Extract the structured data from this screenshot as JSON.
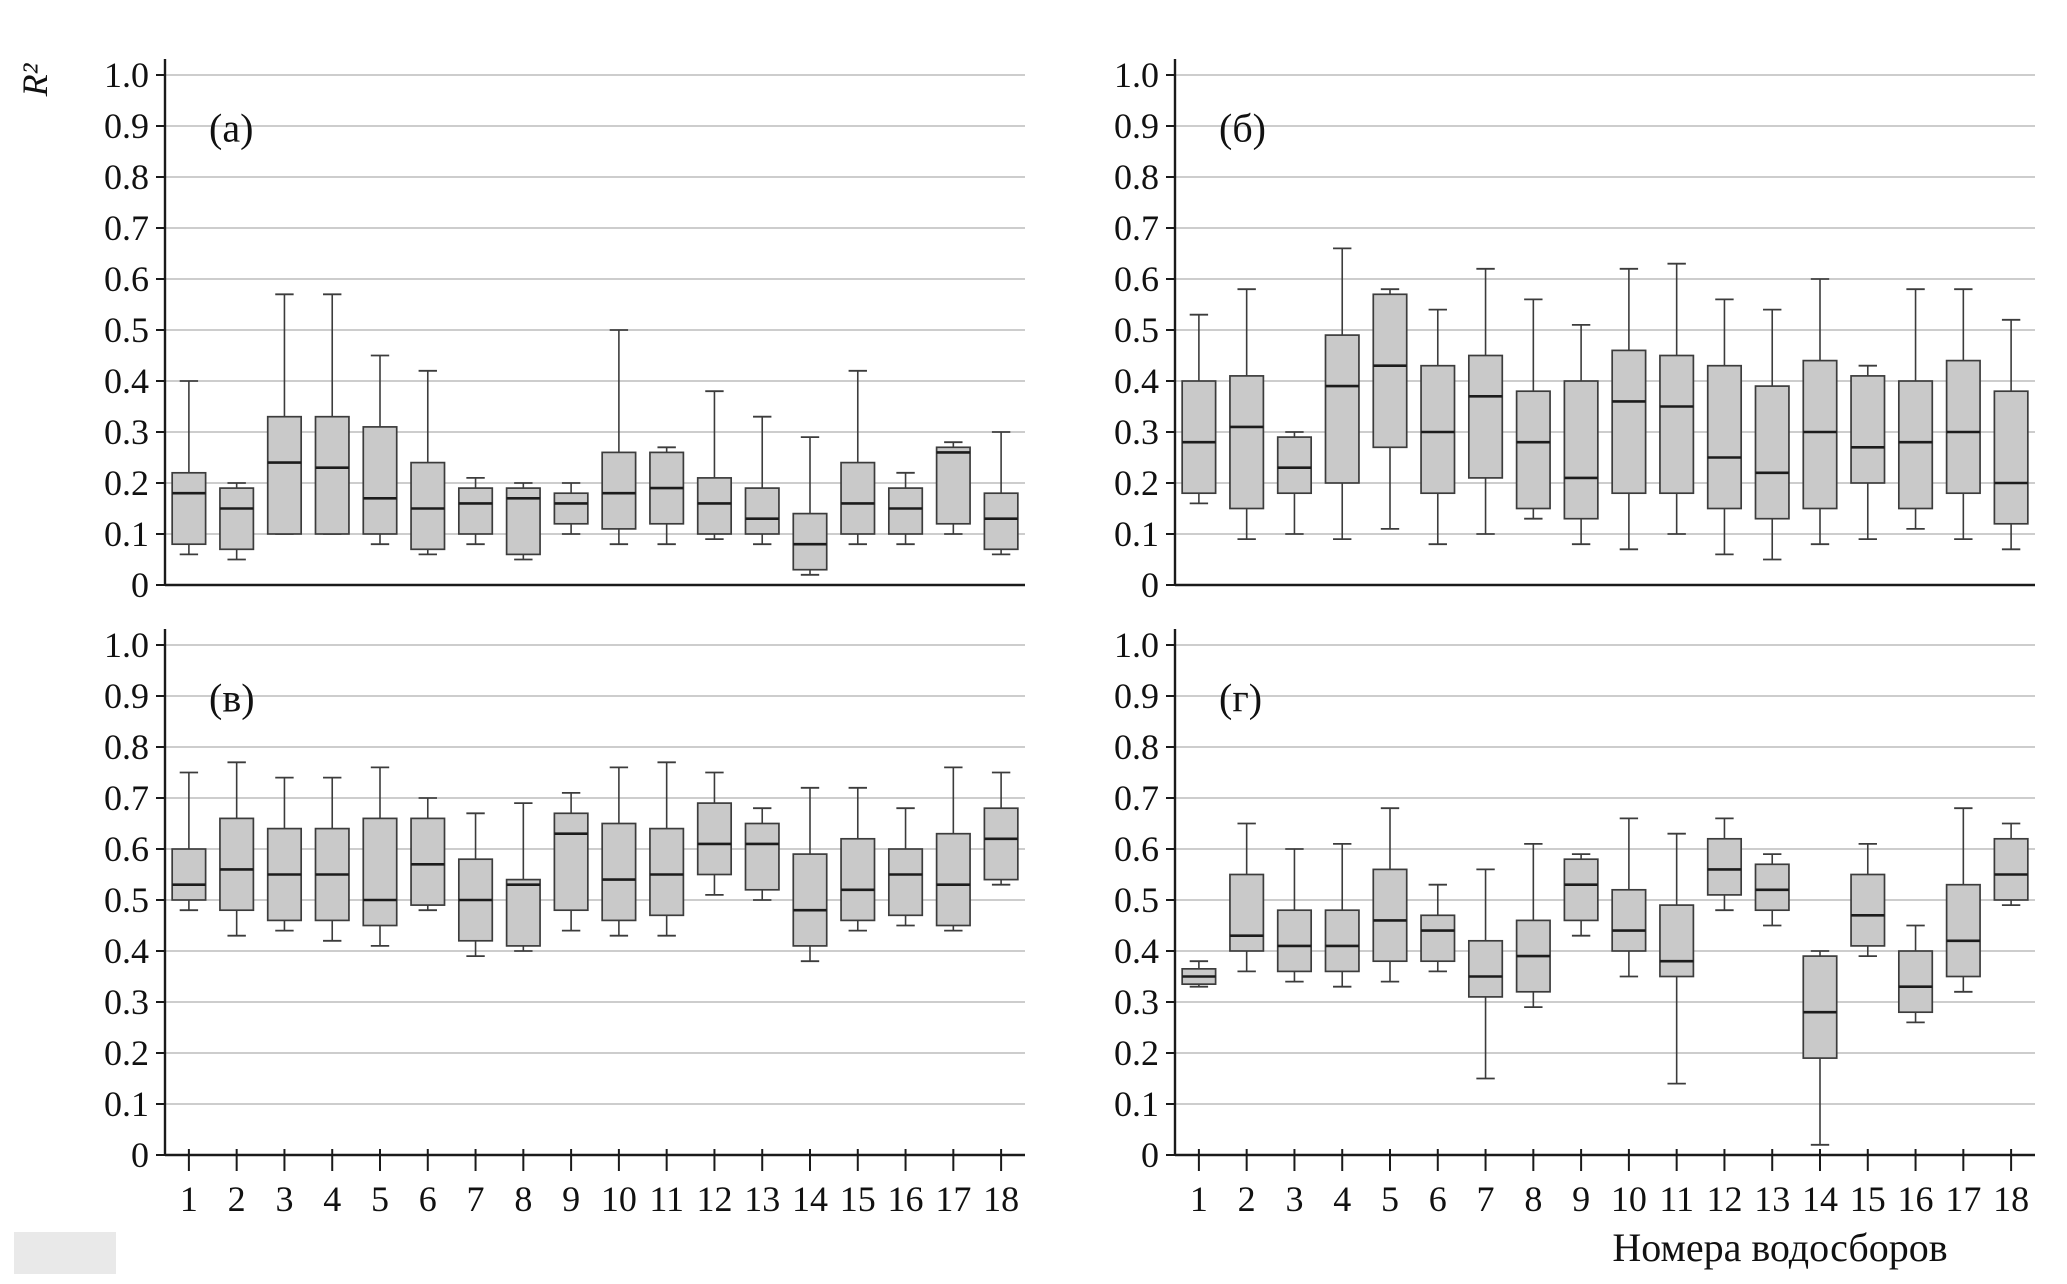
{
  "labels": {
    "y_axis_title": "R²",
    "x_axis_title": "Номера водосборов"
  },
  "style": {
    "box_fill": "#c9c9c9",
    "box_stroke": "#3c3c3c",
    "median_color": "#1c1c1c",
    "grid_color": "#9b9b9b",
    "axis_color": "#1a1a1a"
  },
  "chart_data": [
    {
      "type": "boxplot",
      "label": "(а)",
      "ylim": [
        0,
        1
      ],
      "grid": true,
      "show_x_tick_labels": false,
      "ytick_values": [
        0,
        0.1,
        0.2,
        0.3,
        0.4,
        0.5,
        0.6,
        0.7,
        0.8,
        0.9,
        1.0
      ],
      "ytick_labels": [
        "0",
        "0.1",
        "0.2",
        "0.3",
        "0.4",
        "0.5",
        "0.6",
        "0.7",
        "0.8",
        "0.9",
        "1.0"
      ],
      "categories": [
        "1",
        "2",
        "3",
        "4",
        "5",
        "6",
        "7",
        "8",
        "9",
        "10",
        "11",
        "12",
        "13",
        "14",
        "15",
        "16",
        "17",
        "18"
      ],
      "box_keys": [
        "whisker_low",
        "q1",
        "median",
        "q3",
        "whisker_high"
      ],
      "boxes": [
        [
          0.06,
          0.08,
          0.18,
          0.22,
          0.4
        ],
        [
          0.05,
          0.07,
          0.15,
          0.19,
          0.2
        ],
        [
          0.1,
          0.1,
          0.24,
          0.33,
          0.57
        ],
        [
          0.1,
          0.1,
          0.23,
          0.33,
          0.57
        ],
        [
          0.08,
          0.1,
          0.17,
          0.31,
          0.45
        ],
        [
          0.06,
          0.07,
          0.15,
          0.24,
          0.42
        ],
        [
          0.08,
          0.1,
          0.16,
          0.19,
          0.21
        ],
        [
          0.05,
          0.06,
          0.17,
          0.19,
          0.2
        ],
        [
          0.1,
          0.12,
          0.16,
          0.18,
          0.2
        ],
        [
          0.08,
          0.11,
          0.18,
          0.26,
          0.5
        ],
        [
          0.08,
          0.12,
          0.19,
          0.26,
          0.27
        ],
        [
          0.09,
          0.1,
          0.16,
          0.21,
          0.38
        ],
        [
          0.08,
          0.1,
          0.13,
          0.19,
          0.33
        ],
        [
          0.02,
          0.03,
          0.08,
          0.14,
          0.29
        ],
        [
          0.08,
          0.1,
          0.16,
          0.24,
          0.42
        ],
        [
          0.08,
          0.1,
          0.15,
          0.19,
          0.22
        ],
        [
          0.1,
          0.12,
          0.26,
          0.27,
          0.28
        ],
        [
          0.06,
          0.07,
          0.13,
          0.18,
          0.3
        ]
      ]
    },
    {
      "type": "boxplot",
      "label": "(б)",
      "ylim": [
        0,
        1
      ],
      "grid": true,
      "show_x_tick_labels": false,
      "ytick_values": [
        0,
        0.1,
        0.2,
        0.3,
        0.4,
        0.5,
        0.6,
        0.7,
        0.8,
        0.9,
        1.0
      ],
      "ytick_labels": [
        "0",
        "0.1",
        "0.2",
        "0.3",
        "0.4",
        "0.5",
        "0.6",
        "0.7",
        "0.8",
        "0.9",
        "1.0"
      ],
      "categories": [
        "1",
        "2",
        "3",
        "4",
        "5",
        "6",
        "7",
        "8",
        "9",
        "10",
        "11",
        "12",
        "13",
        "14",
        "15",
        "16",
        "17",
        "18"
      ],
      "box_keys": [
        "whisker_low",
        "q1",
        "median",
        "q3",
        "whisker_high"
      ],
      "boxes": [
        [
          0.16,
          0.18,
          0.28,
          0.4,
          0.53
        ],
        [
          0.09,
          0.15,
          0.31,
          0.41,
          0.58
        ],
        [
          0.1,
          0.18,
          0.23,
          0.29,
          0.3
        ],
        [
          0.09,
          0.2,
          0.39,
          0.49,
          0.66
        ],
        [
          0.11,
          0.27,
          0.43,
          0.57,
          0.58
        ],
        [
          0.08,
          0.18,
          0.3,
          0.43,
          0.54
        ],
        [
          0.1,
          0.21,
          0.37,
          0.45,
          0.62
        ],
        [
          0.13,
          0.15,
          0.28,
          0.38,
          0.56
        ],
        [
          0.08,
          0.13,
          0.21,
          0.4,
          0.51
        ],
        [
          0.07,
          0.18,
          0.36,
          0.46,
          0.62
        ],
        [
          0.1,
          0.18,
          0.35,
          0.45,
          0.63
        ],
        [
          0.06,
          0.15,
          0.25,
          0.43,
          0.56
        ],
        [
          0.05,
          0.13,
          0.22,
          0.39,
          0.54
        ],
        [
          0.08,
          0.15,
          0.3,
          0.44,
          0.6
        ],
        [
          0.09,
          0.2,
          0.27,
          0.41,
          0.43
        ],
        [
          0.11,
          0.15,
          0.28,
          0.4,
          0.58
        ],
        [
          0.09,
          0.18,
          0.3,
          0.44,
          0.58
        ],
        [
          0.07,
          0.12,
          0.2,
          0.38,
          0.52
        ]
      ]
    },
    {
      "type": "boxplot",
      "label": "(в)",
      "ylim": [
        0,
        1
      ],
      "grid": true,
      "show_x_tick_labels": true,
      "ytick_values": [
        0,
        0.1,
        0.2,
        0.3,
        0.4,
        0.5,
        0.6,
        0.7,
        0.8,
        0.9,
        1.0
      ],
      "ytick_labels": [
        "0",
        "0.1",
        "0.2",
        "0.3",
        "0.4",
        "0.5",
        "0.6",
        "0.7",
        "0.8",
        "0.9",
        "1.0"
      ],
      "categories": [
        "1",
        "2",
        "3",
        "4",
        "5",
        "6",
        "7",
        "8",
        "9",
        "10",
        "11",
        "12",
        "13",
        "14",
        "15",
        "16",
        "17",
        "18"
      ],
      "box_keys": [
        "whisker_low",
        "q1",
        "median",
        "q3",
        "whisker_high"
      ],
      "boxes": [
        [
          0.48,
          0.5,
          0.53,
          0.6,
          0.75
        ],
        [
          0.43,
          0.48,
          0.56,
          0.66,
          0.77
        ],
        [
          0.44,
          0.46,
          0.55,
          0.64,
          0.74
        ],
        [
          0.42,
          0.46,
          0.55,
          0.64,
          0.74
        ],
        [
          0.41,
          0.45,
          0.5,
          0.66,
          0.76
        ],
        [
          0.48,
          0.49,
          0.57,
          0.66,
          0.7
        ],
        [
          0.39,
          0.42,
          0.5,
          0.58,
          0.67
        ],
        [
          0.4,
          0.41,
          0.53,
          0.54,
          0.69
        ],
        [
          0.44,
          0.48,
          0.63,
          0.67,
          0.71
        ],
        [
          0.43,
          0.46,
          0.54,
          0.65,
          0.76
        ],
        [
          0.43,
          0.47,
          0.55,
          0.64,
          0.77
        ],
        [
          0.51,
          0.55,
          0.61,
          0.69,
          0.75
        ],
        [
          0.5,
          0.52,
          0.61,
          0.65,
          0.68
        ],
        [
          0.38,
          0.41,
          0.48,
          0.59,
          0.72
        ],
        [
          0.44,
          0.46,
          0.52,
          0.62,
          0.72
        ],
        [
          0.45,
          0.47,
          0.55,
          0.6,
          0.68
        ],
        [
          0.44,
          0.45,
          0.53,
          0.63,
          0.76
        ],
        [
          0.53,
          0.54,
          0.62,
          0.68,
          0.75
        ]
      ]
    },
    {
      "type": "boxplot",
      "label": "(г)",
      "ylim": [
        0,
        1
      ],
      "grid": true,
      "show_x_tick_labels": true,
      "ytick_values": [
        0,
        0.1,
        0.2,
        0.3,
        0.4,
        0.5,
        0.6,
        0.7,
        0.8,
        0.9,
        1.0
      ],
      "ytick_labels": [
        "0",
        "0.1",
        "0.2",
        "0.3",
        "0.4",
        "0.5",
        "0.6",
        "0.7",
        "0.8",
        "0.9",
        "1.0"
      ],
      "categories": [
        "1",
        "2",
        "3",
        "4",
        "5",
        "6",
        "7",
        "8",
        "9",
        "10",
        "11",
        "12",
        "13",
        "14",
        "15",
        "16",
        "17",
        "18"
      ],
      "box_keys": [
        "whisker_low",
        "q1",
        "median",
        "q3",
        "whisker_high"
      ],
      "boxes": [
        [
          0.33,
          0.335,
          0.35,
          0.365,
          0.38
        ],
        [
          0.36,
          0.4,
          0.43,
          0.55,
          0.65
        ],
        [
          0.34,
          0.36,
          0.41,
          0.48,
          0.6
        ],
        [
          0.33,
          0.36,
          0.41,
          0.48,
          0.61
        ],
        [
          0.34,
          0.38,
          0.46,
          0.56,
          0.68
        ],
        [
          0.36,
          0.38,
          0.44,
          0.47,
          0.53
        ],
        [
          0.15,
          0.31,
          0.35,
          0.42,
          0.56
        ],
        [
          0.29,
          0.32,
          0.39,
          0.46,
          0.61
        ],
        [
          0.43,
          0.46,
          0.53,
          0.58,
          0.59
        ],
        [
          0.35,
          0.4,
          0.44,
          0.52,
          0.66
        ],
        [
          0.14,
          0.35,
          0.38,
          0.49,
          0.63
        ],
        [
          0.48,
          0.51,
          0.56,
          0.62,
          0.66
        ],
        [
          0.45,
          0.48,
          0.52,
          0.57,
          0.59
        ],
        [
          0.02,
          0.19,
          0.28,
          0.39,
          0.4
        ],
        [
          0.39,
          0.41,
          0.47,
          0.55,
          0.61
        ],
        [
          0.26,
          0.28,
          0.33,
          0.4,
          0.45
        ],
        [
          0.32,
          0.35,
          0.42,
          0.53,
          0.68
        ],
        [
          0.49,
          0.5,
          0.55,
          0.62,
          0.65
        ]
      ]
    }
  ]
}
